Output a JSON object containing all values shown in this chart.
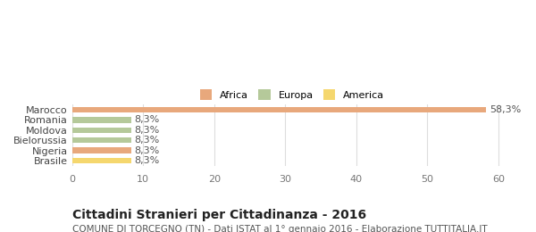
{
  "categories": [
    "Brasile",
    "Nigeria",
    "Bielorussia",
    "Moldova",
    "Romania",
    "Marocco"
  ],
  "values": [
    8.3,
    8.3,
    8.3,
    8.3,
    8.3,
    58.3
  ],
  "colors": [
    "#f5d76e",
    "#e8a87c",
    "#b5c99a",
    "#b5c99a",
    "#b5c99a",
    "#e8a87c"
  ],
  "bar_labels": [
    "8,3%",
    "8,3%",
    "8,3%",
    "8,3%",
    "8,3%",
    "58,3%"
  ],
  "xlim": [
    0,
    62
  ],
  "xticks": [
    0,
    10,
    20,
    30,
    40,
    50,
    60
  ],
  "legend_items": [
    {
      "label": "Africa",
      "color": "#e8a87c"
    },
    {
      "label": "Europa",
      "color": "#b5c99a"
    },
    {
      "label": "America",
      "color": "#f5d76e"
    }
  ],
  "title": "Cittadini Stranieri per Cittadinanza - 2016",
  "subtitle": "COMUNE DI TORCEGNO (TN) - Dati ISTAT al 1° gennaio 2016 - Elaborazione TUTTITALIA.IT",
  "bg_color": "#ffffff",
  "grid_color": "#dddddd",
  "bar_height": 0.55,
  "label_fontsize": 8,
  "tick_fontsize": 8,
  "title_fontsize": 10,
  "subtitle_fontsize": 7.5
}
